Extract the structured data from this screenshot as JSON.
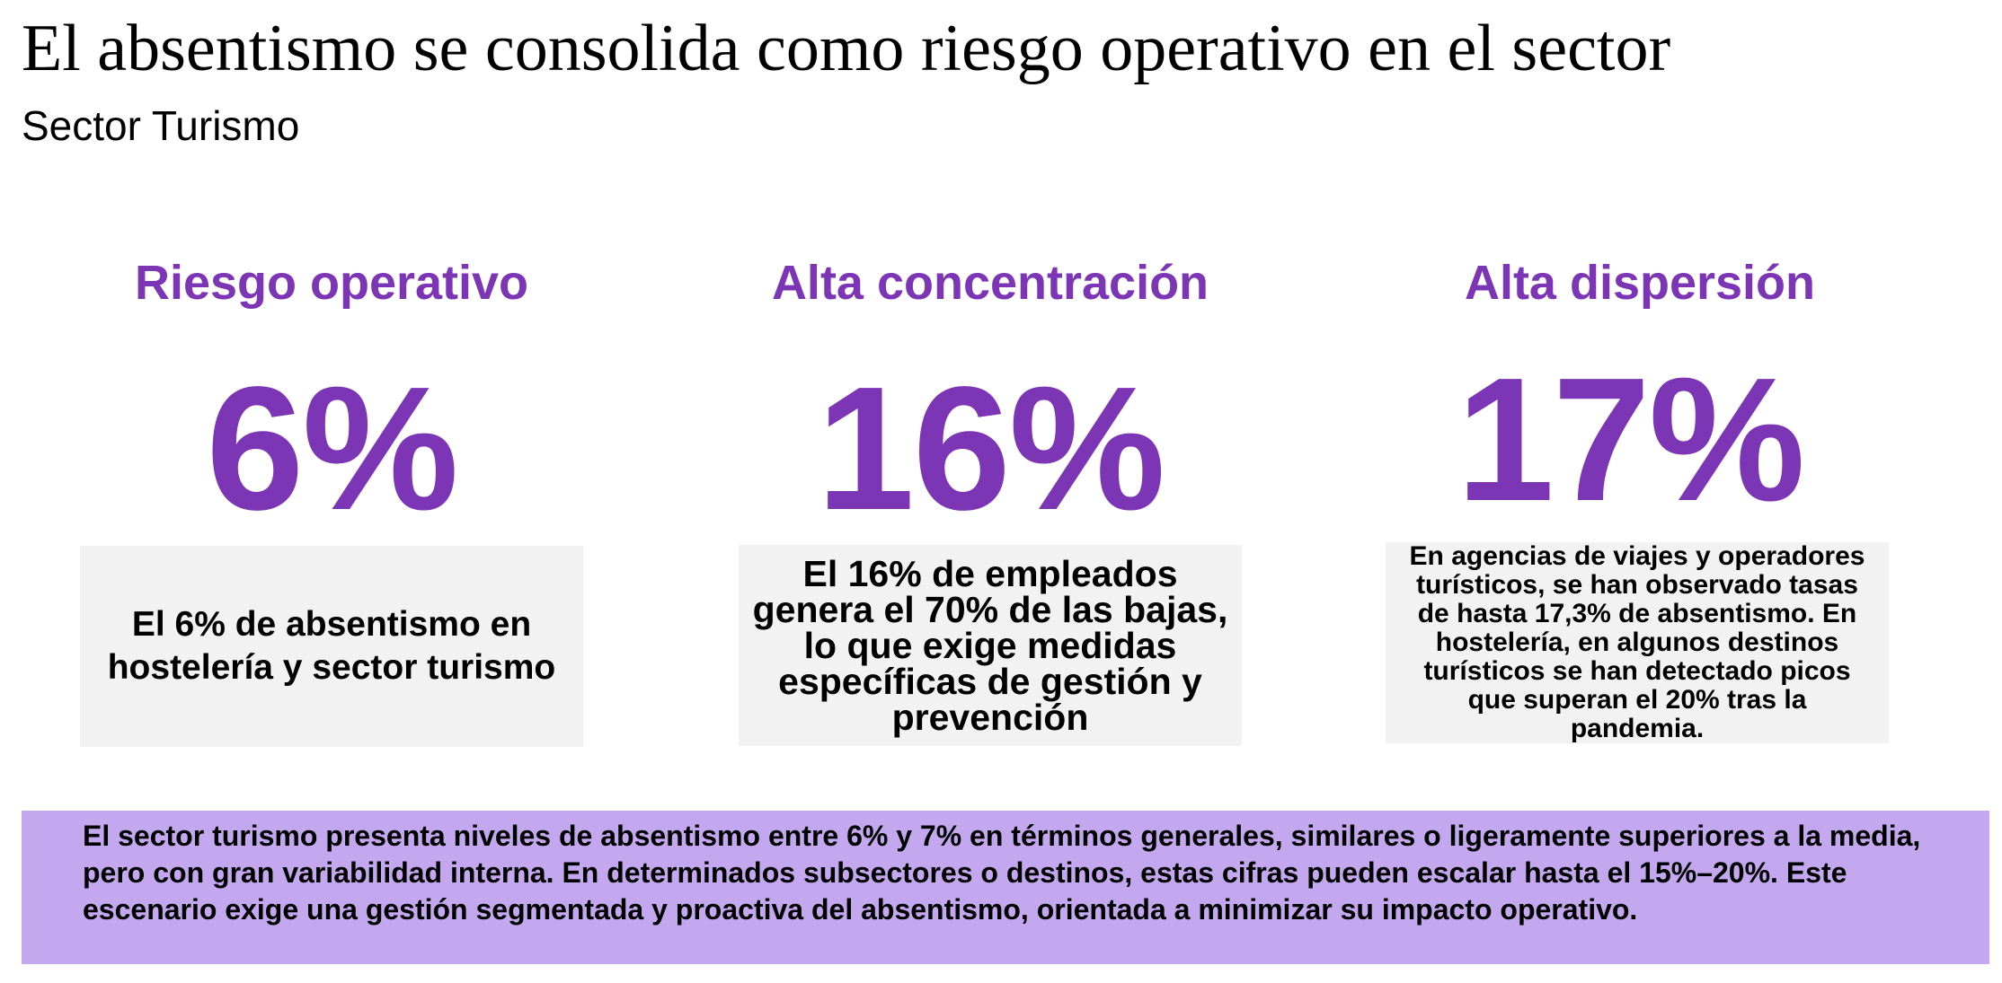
{
  "colors": {
    "accent": "#7b35b5",
    "box_bg": "#f2f2f2",
    "band_bg": "#c3a8ef"
  },
  "header": {
    "title": "El absentismo se consolida como riesgo operativo en el sector",
    "subtitle": "Sector Turismo"
  },
  "kpis": [
    {
      "heading": "Riesgo operativo",
      "value": "6%",
      "description": "El 6% de absentismo en hostelería y sector turismo"
    },
    {
      "heading": "Alta concentración",
      "value": "16%",
      "description": "El 16% de empleados genera el 70% de las bajas, lo que exige medidas específicas de gestión y prevención"
    },
    {
      "heading": "Alta dispersión",
      "value": "17%",
      "description": "En agencias de viajes y operadores turísticos, se han observado tasas de hasta 17,3% de absentismo. En hostelería, en algunos destinos turísticos se han detectado picos que superan el 20% tras la pandemia."
    }
  ],
  "summary": {
    "text": "El sector turismo presenta niveles de absentismo entre 6% y 7% en términos generales, similares o ligeramente superiores a la media, pero con gran variabilidad interna. En determinados subsectores o destinos, estas cifras pueden escalar hasta el 15%–20%. Este escenario exige una gestión segmentada y proactiva del absentismo, orientada a minimizar su impacto operativo."
  }
}
